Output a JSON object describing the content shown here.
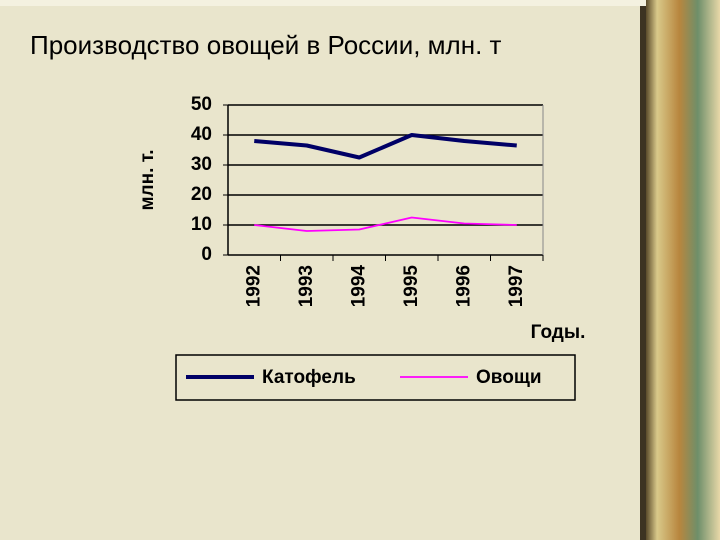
{
  "chart_data": {
    "type": "line",
    "title": "Производство овощей в России, млн. т",
    "y_label": "млн. т.",
    "x_label": "Годы.",
    "categories": [
      "1992",
      "1993",
      "1994",
      "1995",
      "1996",
      "1997"
    ],
    "series": [
      {
        "name": "Катофель",
        "color": "#000066",
        "values": [
          38,
          36.5,
          32.5,
          40,
          38,
          36.5
        ]
      },
      {
        "name": "Овощи",
        "color": "#ff00ff",
        "values": [
          10,
          8,
          8.5,
          12.5,
          10.5,
          10
        ]
      }
    ],
    "ylim": [
      0,
      50
    ],
    "yticks": [
      0,
      10,
      20,
      30,
      40,
      50
    ],
    "grid": true,
    "legend": "bottom"
  }
}
